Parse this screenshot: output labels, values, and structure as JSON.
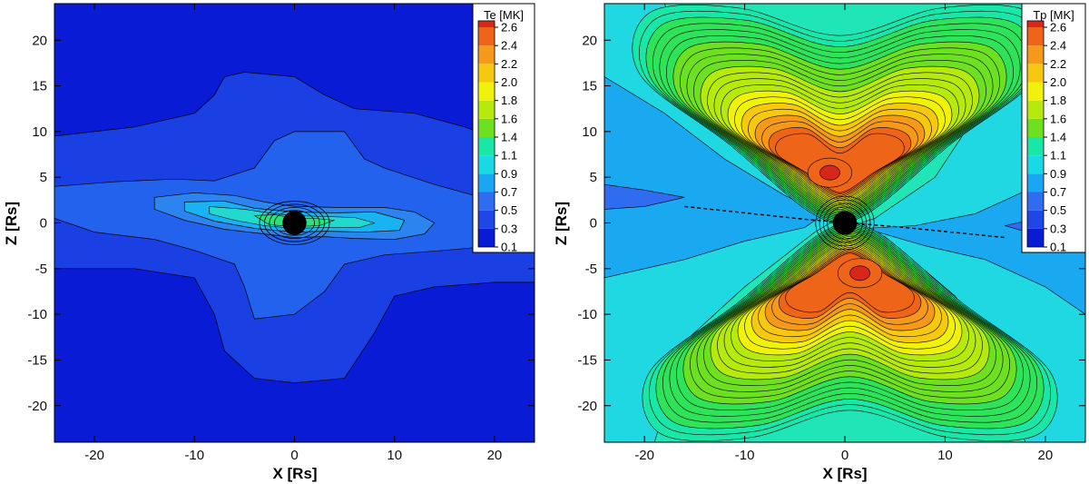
{
  "chart_data": [
    {
      "type": "heatmap",
      "quantity": "Te",
      "xlabel": "X [Rs]",
      "ylabel": "Z [Rs]",
      "xlim": [
        -24,
        24
      ],
      "ylim": [
        -24,
        24
      ],
      "xticks": [
        -20,
        -10,
        0,
        10,
        20
      ],
      "yticks": [
        -20,
        -15,
        -10,
        -5,
        0,
        5,
        10,
        15,
        20
      ],
      "colorbar": {
        "title": "Te [MK]",
        "levels": [
          0.1,
          0.3,
          0.5,
          0.7,
          0.9,
          1.1,
          1.4,
          1.6,
          1.8,
          2.0,
          2.2,
          2.4,
          2.6
        ]
      },
      "regions": [
        {
          "level": 0.3,
          "desc": "blob"
        },
        {
          "level": 0.5,
          "desc": "elongated disk"
        },
        {
          "level": 0.7,
          "desc": "inner disk"
        },
        {
          "level": 0.9,
          "desc": "core"
        }
      ],
      "occulter_radius": 1.2
    },
    {
      "type": "heatmap",
      "quantity": "Tp",
      "xlabel": "X [Rs]",
      "ylabel": "Z [Rs]",
      "xlim": [
        -24,
        24
      ],
      "ylim": [
        -24,
        24
      ],
      "xticks": [
        -20,
        -10,
        0,
        10,
        20
      ],
      "yticks": [
        -20,
        -15,
        -10,
        -5,
        0,
        5,
        10,
        15,
        20
      ],
      "colorbar": {
        "title": "Tp [MK]",
        "levels": [
          0.1,
          0.3,
          0.5,
          0.7,
          0.9,
          1.1,
          1.4,
          1.6,
          1.8,
          2.0,
          2.2,
          2.4,
          2.6
        ]
      },
      "hotspots": [
        {
          "x": -1.5,
          "z": 5.5,
          "peak": 2.5
        },
        {
          "x": 1.5,
          "z": -5.5,
          "peak": 2.4
        }
      ],
      "occulter_radius": 1.2
    }
  ],
  "colors": {
    "scale": [
      "#0a1bd6",
      "#1f47e8",
      "#2f6cf0",
      "#1aa6f5",
      "#19d9e6",
      "#1ae6a8",
      "#2ee35a",
      "#6ee022",
      "#b6ea0f",
      "#f1f20c",
      "#f6c80f",
      "#f5991a",
      "#ee6418",
      "#d8261b"
    ],
    "background_left": "#1e3ee0",
    "background_right": "#20e5b6"
  }
}
